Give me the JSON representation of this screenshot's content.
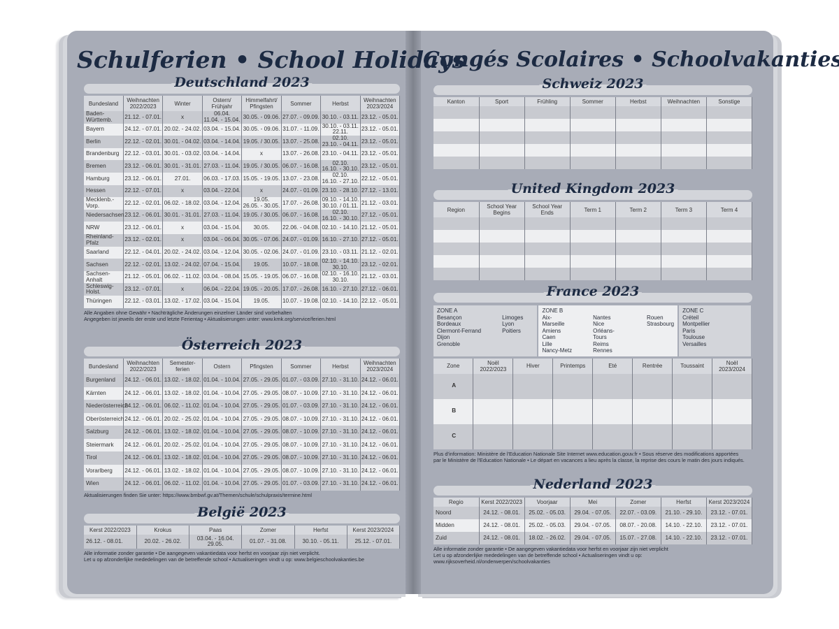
{
  "left_title": "Schulferien • School Holidays",
  "right_title": "Congés Scolaires • Schoolvakanties",
  "de": {
    "heading": "Deutschland 2023",
    "headers": [
      "Bundesland",
      "Weihnachten 2022/2023",
      "Winter",
      "Ostern/ Frühjahr",
      "Himmelfahrt/ Pfingsten",
      "Sommer",
      "Herbst",
      "Weihnachten 2023/2024"
    ],
    "rows": [
      [
        "Baden-Württemb.",
        "21.12. - 07.01.",
        "x",
        "06.04.\n11.04. - 15.04.",
        "30.05. - 09.06.",
        "27.07. - 09.09.",
        "30.10. - 03.11.",
        "23.12. - 05.01."
      ],
      [
        "Bayern",
        "24.12. - 07.01.",
        "20.02. - 24.02.",
        "03.04. - 15.04.",
        "30.05. - 09.06.",
        "31.07. - 11.09.",
        "30.10. - 03.11.\n22.11.",
        "23.12. - 05.01."
      ],
      [
        "Berlin",
        "22.12. - 02.01.",
        "30.01. - 04.02.",
        "03.04. - 14.04.",
        "19.05. / 30.05.",
        "13.07. - 25.08.",
        "02.10.\n23.10. - 04.11.",
        "23.12. - 05.01."
      ],
      [
        "Brandenburg",
        "22.12. - 03.01.",
        "30.01. - 03.02.",
        "03.04. - 14.04.",
        "x",
        "13.07. - 26.08.",
        "23.10. - 04.11.",
        "23.12. - 05.01."
      ],
      [
        "Bremen",
        "23.12. - 06.01.",
        "30.01. - 31.01.",
        "27.03. - 11.04.",
        "19.05. / 30.05.",
        "06.07. - 16.08.",
        "02.10.\n16.10. - 30.10.",
        "23.12. - 05.01."
      ],
      [
        "Hamburg",
        "23.12. - 06.01.",
        "27.01.",
        "06.03. - 17.03.",
        "15.05. - 19.05.",
        "13.07. - 23.08.",
        "02.10.\n16.10. - 27.10.",
        "22.12. - 05.01."
      ],
      [
        "Hessen",
        "22.12. - 07.01.",
        "x",
        "03.04. - 22.04.",
        "x",
        "24.07. - 01.09.",
        "23.10. - 28.10.",
        "27.12. - 13.01."
      ],
      [
        "Mecklenb.-Vorp.",
        "22.12. - 02.01.",
        "06.02. - 18.02.",
        "03.04. - 12.04.",
        "19.05.\n26.05. - 30.05.",
        "17.07. - 26.08.",
        "09.10. - 14.10.\n30.10. / 01.11.",
        "21.12. - 03.01."
      ],
      [
        "Niedersachsen",
        "23.12. - 06.01.",
        "30.01. - 31.01.",
        "27.03. - 11.04.",
        "19.05. / 30.05.",
        "06.07. - 16.08.",
        "02.10.\n16.10. - 30.10.",
        "27.12. - 05.01."
      ],
      [
        "NRW",
        "23.12. - 06.01.",
        "x",
        "03.04. - 15.04.",
        "30.05.",
        "22.06. - 04.08.",
        "02.10. - 14.10.",
        "21.12. - 05.01."
      ],
      [
        "Rheinland-Pfalz",
        "23.12. - 02.01.",
        "x",
        "03.04. - 06.04.",
        "30.05. - 07.06.",
        "24.07. - 01.09.",
        "16.10. - 27.10.",
        "27.12. - 05.01."
      ],
      [
        "Saarland",
        "22.12. - 04.01.",
        "20.02. - 24.02.",
        "03.04. - 12.04.",
        "30.05. - 02.06.",
        "24.07. - 01.09.",
        "23.10. - 03.11.",
        "21.12. - 02.01."
      ],
      [
        "Sachsen",
        "22.12. - 02.01.",
        "13.02. - 24.02.",
        "07.04. - 15.04.",
        "19.05.",
        "10.07. - 18.08.",
        "02.10. - 14.10.\n30.10.",
        "23.12. - 02.01."
      ],
      [
        "Sachsen-Anhalt",
        "21.12. - 05.01.",
        "06.02. - 11.02.",
        "03.04. - 08.04.",
        "15.05. - 19.05.",
        "06.07. - 16.08.",
        "02.10. - 16.10.\n30.10.",
        "21.12. - 03.01."
      ],
      [
        "Schleswig-Holst.",
        "23.12. - 07.01.",
        "x",
        "06.04. - 22.04.",
        "19.05. - 20.05.",
        "17.07. - 26.08.",
        "16.10. - 27.10.",
        "27.12. - 06.01."
      ],
      [
        "Thüringen",
        "22.12. - 03.01.",
        "13.02. - 17.02.",
        "03.04. - 15.04.",
        "19.05.",
        "10.07. - 19.08.",
        "02.10. - 14.10.",
        "22.12. - 05.01."
      ]
    ],
    "note1": "Alle Angaben ohne Gewähr • Nachträgliche Änderungen einzelner Länder sind vorbehalten",
    "note2": "Angegeben ist jeweils der erste und letzte Ferientag • Aktualisierungen unter: www.kmk.org/service/ferien.html"
  },
  "at": {
    "heading": "Österreich 2023",
    "headers": [
      "Bundesland",
      "Weihnachten 2022/2023",
      "Semester- ferien",
      "Ostern",
      "Pfingsten",
      "Sommer",
      "Herbst",
      "Weihnachten 2023/2024"
    ],
    "rows": [
      [
        "Burgenland",
        "24.12. - 06.01.",
        "13.02. - 18.02.",
        "01.04. - 10.04.",
        "27.05. - 29.05.",
        "01.07. - 03.09.",
        "27.10. - 31.10.",
        "24.12. - 06.01."
      ],
      [
        "Kärnten",
        "24.12. - 06.01.",
        "13.02. - 18.02.",
        "01.04. - 10.04.",
        "27.05. - 29.05.",
        "08.07. - 10.09.",
        "27.10. - 31.10.",
        "24.12. - 06.01."
      ],
      [
        "Niederösterreich",
        "24.12. - 06.01.",
        "06.02. - 11.02.",
        "01.04. - 10.04.",
        "27.05. - 29.05.",
        "01.07. - 03.09.",
        "27.10. - 31.10.",
        "24.12. - 06.01."
      ],
      [
        "Oberösterreich",
        "24.12. - 06.01.",
        "20.02. - 25.02.",
        "01.04. - 10.04.",
        "27.05. - 29.05.",
        "08.07. - 10.09.",
        "27.10. - 31.10.",
        "24.12. - 06.01."
      ],
      [
        "Salzburg",
        "24.12. - 06.01.",
        "13.02. - 18.02.",
        "01.04. - 10.04.",
        "27.05. - 29.05.",
        "08.07. - 10.09.",
        "27.10. - 31.10.",
        "24.12. - 06.01."
      ],
      [
        "Steiermark",
        "24.12. - 06.01.",
        "20.02. - 25.02.",
        "01.04. - 10.04.",
        "27.05. - 29.05.",
        "08.07. - 10.09.",
        "27.10. - 31.10.",
        "24.12. - 06.01."
      ],
      [
        "Tirol",
        "24.12. - 06.01.",
        "13.02. - 18.02.",
        "01.04. - 10.04.",
        "27.05. - 29.05.",
        "08.07. - 10.09.",
        "27.10. - 31.10.",
        "24.12. - 06.01."
      ],
      [
        "Vorarlberg",
        "24.12. - 06.01.",
        "13.02. - 18.02.",
        "01.04. - 10.04.",
        "27.05. - 29.05.",
        "08.07. - 10.09.",
        "27.10. - 31.10.",
        "24.12. - 06.01."
      ],
      [
        "Wien",
        "24.12. - 06.01.",
        "06.02. - 11.02.",
        "01.04. - 10.04.",
        "27.05. - 29.05.",
        "01.07. - 03.09.",
        "27.10. - 31.10.",
        "24.12. - 06.01."
      ]
    ],
    "note1": "Aktualisierungen finden Sie unter: https://www.bmbwf.gv.at/Themen/schule/schulpraxis/termine.html"
  },
  "be": {
    "heading": "België 2023",
    "headers": [
      "Kerst 2022/2023",
      "Krokus",
      "Paas",
      "Zomer",
      "Herfst",
      "Kerst 2023/2024"
    ],
    "rows": [
      [
        "26.12. - 08.01.",
        "20.02. - 26.02.",
        "03.04. - 16.04.\n29.05.",
        "01.07. - 31.08.",
        "30.10. - 05.11.",
        "25.12. - 07.01."
      ]
    ],
    "note1": "Alle informatie zonder garantie • De aangegeven vakantiedata voor herfst en voorjaar zijn niet verplicht.",
    "note2": "Let u op afzonderlijke mededelingen van de betreffende school • Actualiseringen vindt u op: www.belgieschoolvakanties.be"
  },
  "ch": {
    "heading": "Schweiz 2023",
    "headers": [
      "Kanton",
      "Sport",
      "Frühling",
      "Sommer",
      "Herbst",
      "Weihnachten",
      "Sonstige"
    ],
    "rows": [
      [
        "",
        "",
        "",
        "",
        "",
        "",
        ""
      ],
      [
        "",
        "",
        "",
        "",
        "",
        "",
        ""
      ],
      [
        "",
        "",
        "",
        "",
        "",
        "",
        ""
      ],
      [
        "",
        "",
        "",
        "",
        "",
        "",
        ""
      ],
      [
        "",
        "",
        "",
        "",
        "",
        "",
        ""
      ]
    ]
  },
  "uk": {
    "heading": "United Kingdom 2023",
    "headers": [
      "Region",
      "School Year Begins",
      "School Year Ends",
      "Term 1",
      "Term 2",
      "Term 3",
      "Term 4"
    ],
    "rows": [
      [
        "",
        "",
        "",
        "",
        "",
        "",
        ""
      ],
      [
        "",
        "",
        "",
        "",
        "",
        "",
        ""
      ],
      [
        "",
        "",
        "",
        "",
        "",
        "",
        ""
      ],
      [
        "",
        "",
        "",
        "",
        "",
        "",
        ""
      ],
      [
        "",
        "",
        "",
        "",
        "",
        "",
        ""
      ]
    ]
  },
  "fr": {
    "heading": "France 2023",
    "zone_a": {
      "label": "ZONE A",
      "col1": [
        "Besançon",
        "Bordeaux",
        "Clermont-Ferrand",
        "Dijon",
        "Grenoble"
      ],
      "col2": [
        "Limoges",
        "Lyon",
        "Poitiers"
      ]
    },
    "zone_b": {
      "label": "ZONE B",
      "col1": [
        "Aix-Marseille",
        "Amiens",
        "Caen",
        "Lille",
        "Nancy-Metz"
      ],
      "col2": [
        "Nantes",
        "Nice",
        "Orléans-Tours",
        "Reims",
        "Rennes"
      ],
      "col3": [
        "Rouen",
        "Strasbourg"
      ]
    },
    "zone_c": {
      "label": "ZONE C",
      "col1": [
        "Créteil",
        "Montpellier",
        "Paris",
        "Toulouse",
        "Versailles"
      ]
    },
    "headers": [
      "Zone",
      "Noël 2022/2023",
      "Hiver",
      "Printemps",
      "Eté",
      "Rentrée",
      "Toussaint",
      "Noël 2023/2024"
    ],
    "rows": [
      [
        "A",
        "",
        "",
        "",
        "",
        "",
        "",
        ""
      ],
      [
        "B",
        "",
        "",
        "",
        "",
        "",
        "",
        ""
      ],
      [
        "C",
        "",
        "",
        "",
        "",
        "",
        "",
        ""
      ]
    ],
    "note1": "Plus d'information: Ministère de l'Education Nationale Site Internet www.education.gouv.fr • Sous réserve des modifications apportées",
    "note2": "par le Ministère de l'Education Nationale • Le départ en vacances a lieu après la classe, la reprise des cours le matin des jours indiqués."
  },
  "nl": {
    "heading": "Nederland 2023",
    "headers": [
      "Regio",
      "Kerst 2022/2023",
      "Voorjaar",
      "Mei",
      "Zomer",
      "Herfst",
      "Kerst 2023/2024"
    ],
    "rows": [
      [
        "Noord",
        "24.12. - 08.01.",
        "25.02. - 05.03.",
        "29.04. - 07.05.",
        "22.07. - 03.09.",
        "21.10. - 29.10.",
        "23.12. - 07.01."
      ],
      [
        "Midden",
        "24.12. - 08.01.",
        "25.02. - 05.03.",
        "29.04. - 07.05.",
        "08.07. - 20.08.",
        "14.10. - 22.10.",
        "23.12. - 07.01."
      ],
      [
        "Zuid",
        "24.12. - 08.01.",
        "18.02. - 26.02.",
        "29.04. - 07.05.",
        "15.07. - 27.08.",
        "14.10. - 22.10.",
        "23.12. - 07.01."
      ]
    ],
    "note1": "Alle informatie zonder garantie • De aangegeven vakantiedata voor herfst en voorjaar zijn niet verplicht",
    "note2": "Let u op afzonderlijke mededelingen van de betreffende school • Actualiseringen vindt u op: www.rijksoverheid.nl/onderwerpen/schoolvakanties"
  }
}
